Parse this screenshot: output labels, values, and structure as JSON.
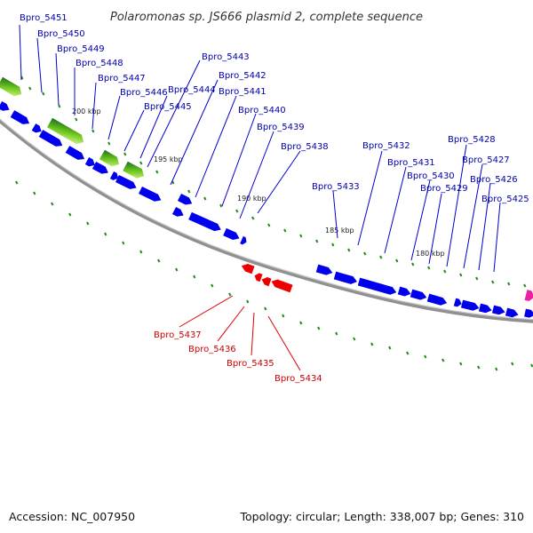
{
  "map": {
    "title": "Polaromonas sp. JS666 plasmid 2, complete sequence",
    "accession": "Accession: NC_007950",
    "summary": "Topology: circular; Length: 338,007 bp; Genes: 310"
  },
  "colors": {
    "forward_gene": "#0000ee",
    "reverse_gene": "#ee0000",
    "backbone": "#808080",
    "tick_marks": "#2a8a1e",
    "label_forward": "#0000aa",
    "label_reverse": "#cc0000",
    "feature_gradient": [
      "#1e6e1e",
      "#6ec81e",
      "#dcf58c"
    ],
    "feature_pink": "#ee1fa0"
  },
  "ticks": [
    "200 kbp",
    "195 kbp",
    "190 kbp",
    "185 kbp",
    "180 kbp"
  ],
  "forward_labels": [
    "Bpro_5451",
    "Bpro_5450",
    "Bpro_5449",
    "Bpro_5448",
    "Bpro_5447",
    "Bpro_5446",
    "Bpro_5445",
    "Bpro_5444",
    "Bpro_5443",
    "Bpro_5442",
    "Bpro_5441",
    "Bpro_5440",
    "Bpro_5439",
    "Bpro_5438",
    "Bpro_5433",
    "Bpro_5432",
    "Bpro_5431",
    "Bpro_5430",
    "Bpro_5429",
    "Bpro_5428",
    "Bpro_5427",
    "Bpro_5426",
    "Bpro_5425"
  ],
  "reverse_labels": [
    "Bpro_5437",
    "Bpro_5436",
    "Bpro_5435",
    "Bpro_5434"
  ]
}
